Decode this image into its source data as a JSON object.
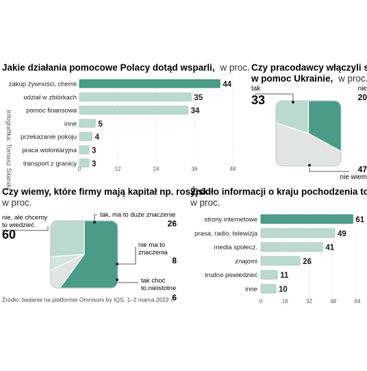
{
  "credit": "Infografika: Tomasz Sitarski",
  "source": "Źródło: badanie na platformie Omnisurv by IQS, 1–2 marca 2022 r.",
  "colors": {
    "teal": "#4a9b87",
    "light": "#bcd9cf",
    "gray": "#e2e3e3",
    "frame": "#c8c8c8"
  },
  "chart_data": [
    {
      "type": "bar",
      "id": "actions",
      "title": "Jakie działania pomocowe Polacy dotąd wsparli,",
      "unit": "w proc.",
      "categories": [
        "zakup żywności, chemii",
        "udział w zbiórkach",
        "pomoc finansowa",
        "inne",
        "przekazanie pokoju",
        "praca wolontaryjna",
        "transport z granicy"
      ],
      "values": [
        44,
        35,
        34,
        5,
        4,
        3,
        3
      ],
      "xlim": [
        0,
        48
      ],
      "xticks": [
        0,
        12,
        24,
        36,
        48
      ],
      "highlight": 0
    },
    {
      "type": "pie",
      "id": "employers",
      "title": "Czy pracodawcy włączyli się w pomoc Ukrainie,",
      "unit": "w proc.",
      "slices": [
        {
          "label": "tak",
          "value": 33,
          "color": "#4a9b87"
        },
        {
          "label": "nie",
          "value": 20,
          "color": "#bcd9cf"
        },
        {
          "label": "nie wiem",
          "value": 47,
          "color": "#e2e3e3"
        }
      ]
    },
    {
      "type": "pie",
      "id": "russian-capital",
      "title": "Czy wiemy, które firmy mają kapitał np. rosyjski",
      "unit": "w proc.",
      "slices": [
        {
          "label": "nie, ale chcemy to wiedzieć",
          "value": 60,
          "color": "#4a9b87"
        },
        {
          "label": "tak, ma to duże znaczenie",
          "value": 26,
          "color": "#bcd9cf"
        },
        {
          "label": "nie ma to znaczenia",
          "value": 8,
          "color": "#e2e3e3"
        },
        {
          "label": "tak choć to nieistotne",
          "value": 6,
          "color": "#d3e7e0"
        }
      ]
    },
    {
      "type": "bar",
      "id": "origin-source",
      "title": "Źródło informacji o kraju pochodzenia towarów",
      "unit": "w proc.",
      "categories": [
        "strony internetowe",
        "prasa, radio, telewizja",
        "media społecz.",
        "znajomi",
        "trudno powiedzieć",
        "inne"
      ],
      "values": [
        61,
        49,
        41,
        26,
        11,
        10
      ],
      "xlim": [
        0,
        64
      ],
      "xticks": [
        0,
        16,
        32,
        48,
        64
      ],
      "highlight": 0
    }
  ]
}
